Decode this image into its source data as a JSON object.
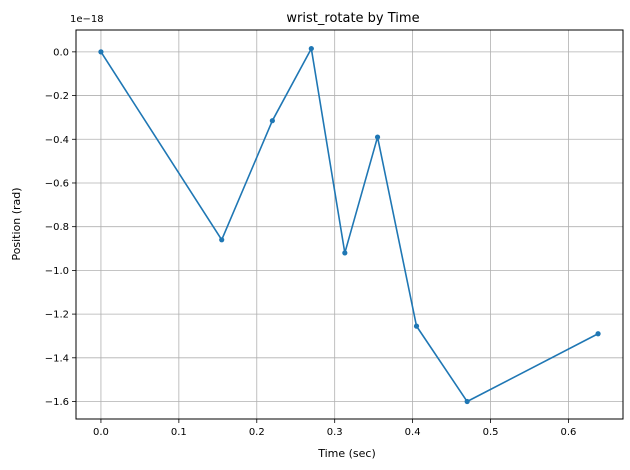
{
  "chart_data": {
    "type": "line",
    "title": "wrist_rotate by Time",
    "xlabel": "Time (sec)",
    "ylabel": "Position (rad)",
    "offset_text": "1e−18",
    "xlim": [
      -0.032,
      0.67
    ],
    "ylim": [
      -1.68,
      0.1
    ],
    "x_ticks": [
      0.0,
      0.1,
      0.2,
      0.3,
      0.4,
      0.5,
      0.6
    ],
    "x_tick_labels": [
      "0.0",
      "0.1",
      "0.2",
      "0.3",
      "0.4",
      "0.5",
      "0.6"
    ],
    "y_ticks": [
      0.0,
      -0.2,
      -0.4,
      -0.6,
      -0.8,
      -1.0,
      -1.2,
      -1.4,
      -1.6
    ],
    "y_tick_labels": [
      "0.0",
      "−0.2",
      "−0.4",
      "−0.6",
      "−0.8",
      "−1.0",
      "−1.2",
      "−1.4",
      "−1.6"
    ],
    "grid": true,
    "series": [
      {
        "color": "#1f77b4",
        "marker": "dot",
        "x": [
          0.0,
          0.155,
          0.22,
          0.27,
          0.313,
          0.355,
          0.405,
          0.47,
          0.638
        ],
        "y": [
          0.0,
          -0.86,
          -0.315,
          0.015,
          -0.92,
          -0.39,
          -1.255,
          -1.6,
          -1.29
        ]
      }
    ]
  }
}
